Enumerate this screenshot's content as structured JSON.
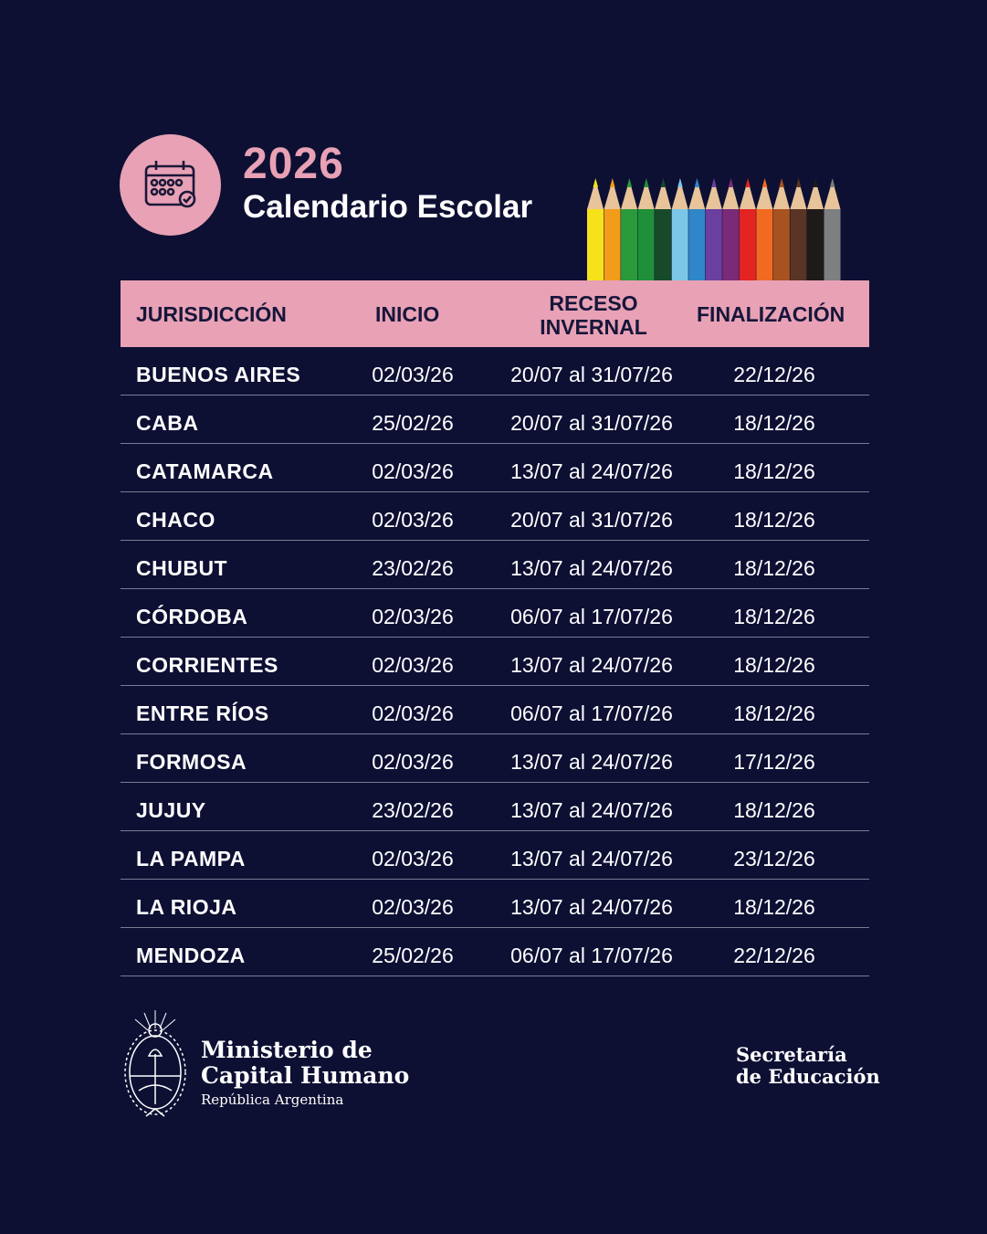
{
  "header": {
    "year": "2026",
    "title": "Calendario Escolar",
    "icon": "calendar-check-icon"
  },
  "colors": {
    "background": "#0d1033",
    "accent": "#e8a1b5",
    "header_text": "#16163a"
  },
  "pencil_colors": [
    "#f5e21b",
    "#f39c1a",
    "#2a9a3a",
    "#1f8f3a",
    "#174a2a",
    "#7cc7e8",
    "#2f86c8",
    "#6b3fa0",
    "#7b2a7a",
    "#e42323",
    "#f26a1f",
    "#a8521f",
    "#5a3424",
    "#1e1a1a",
    "#7d7f80"
  ],
  "table": {
    "columns": [
      "JURISDICCIÓN",
      "INICIO",
      "RECESO\nINVERNAL",
      "FINALIZACIÓN"
    ],
    "column_lines": {
      "receso_1": "RECESO",
      "receso_2": "INVERNAL"
    },
    "rows": [
      {
        "jurisdiccion": "BUENOS AIRES",
        "inicio": "02/03/26",
        "receso": "20/07 al 31/07/26",
        "fin": "22/12/26"
      },
      {
        "jurisdiccion": "CABA",
        "inicio": "25/02/26",
        "receso": "20/07 al 31/07/26",
        "fin": "18/12/26"
      },
      {
        "jurisdiccion": "CATAMARCA",
        "inicio": "02/03/26",
        "receso": "13/07 al 24/07/26",
        "fin": "18/12/26"
      },
      {
        "jurisdiccion": "CHACO",
        "inicio": "02/03/26",
        "receso": "20/07 al 31/07/26",
        "fin": "18/12/26"
      },
      {
        "jurisdiccion": "CHUBUT",
        "inicio": "23/02/26",
        "receso": "13/07 al 24/07/26",
        "fin": "18/12/26"
      },
      {
        "jurisdiccion": "CÓRDOBA",
        "inicio": "02/03/26",
        "receso": "06/07 al 17/07/26",
        "fin": "18/12/26"
      },
      {
        "jurisdiccion": "CORRIENTES",
        "inicio": "02/03/26",
        "receso": "13/07 al 24/07/26",
        "fin": "18/12/26"
      },
      {
        "jurisdiccion": "ENTRE RÍOS",
        "inicio": "02/03/26",
        "receso": "06/07 al 17/07/26",
        "fin": "18/12/26"
      },
      {
        "jurisdiccion": "FORMOSA",
        "inicio": "02/03/26",
        "receso": "13/07 al 24/07/26",
        "fin": "17/12/26"
      },
      {
        "jurisdiccion": "JUJUY",
        "inicio": "23/02/26",
        "receso": "13/07 al 24/07/26",
        "fin": "18/12/26"
      },
      {
        "jurisdiccion": "LA PAMPA",
        "inicio": "02/03/26",
        "receso": "13/07 al 24/07/26",
        "fin": "23/12/26"
      },
      {
        "jurisdiccion": "LA RIOJA",
        "inicio": "02/03/26",
        "receso": "13/07 al 24/07/26",
        "fin": "18/12/26"
      },
      {
        "jurisdiccion": "MENDOZA",
        "inicio": "25/02/26",
        "receso": "06/07 al 17/07/26",
        "fin": "22/12/26"
      }
    ]
  },
  "footer": {
    "ministry_line1": "Ministerio de",
    "ministry_line2": "Capital Humano",
    "country": "República Argentina",
    "secretary_line1": "Secretaría",
    "secretary_line2": "de Educación",
    "emblem": "coat-of-arms-icon"
  }
}
